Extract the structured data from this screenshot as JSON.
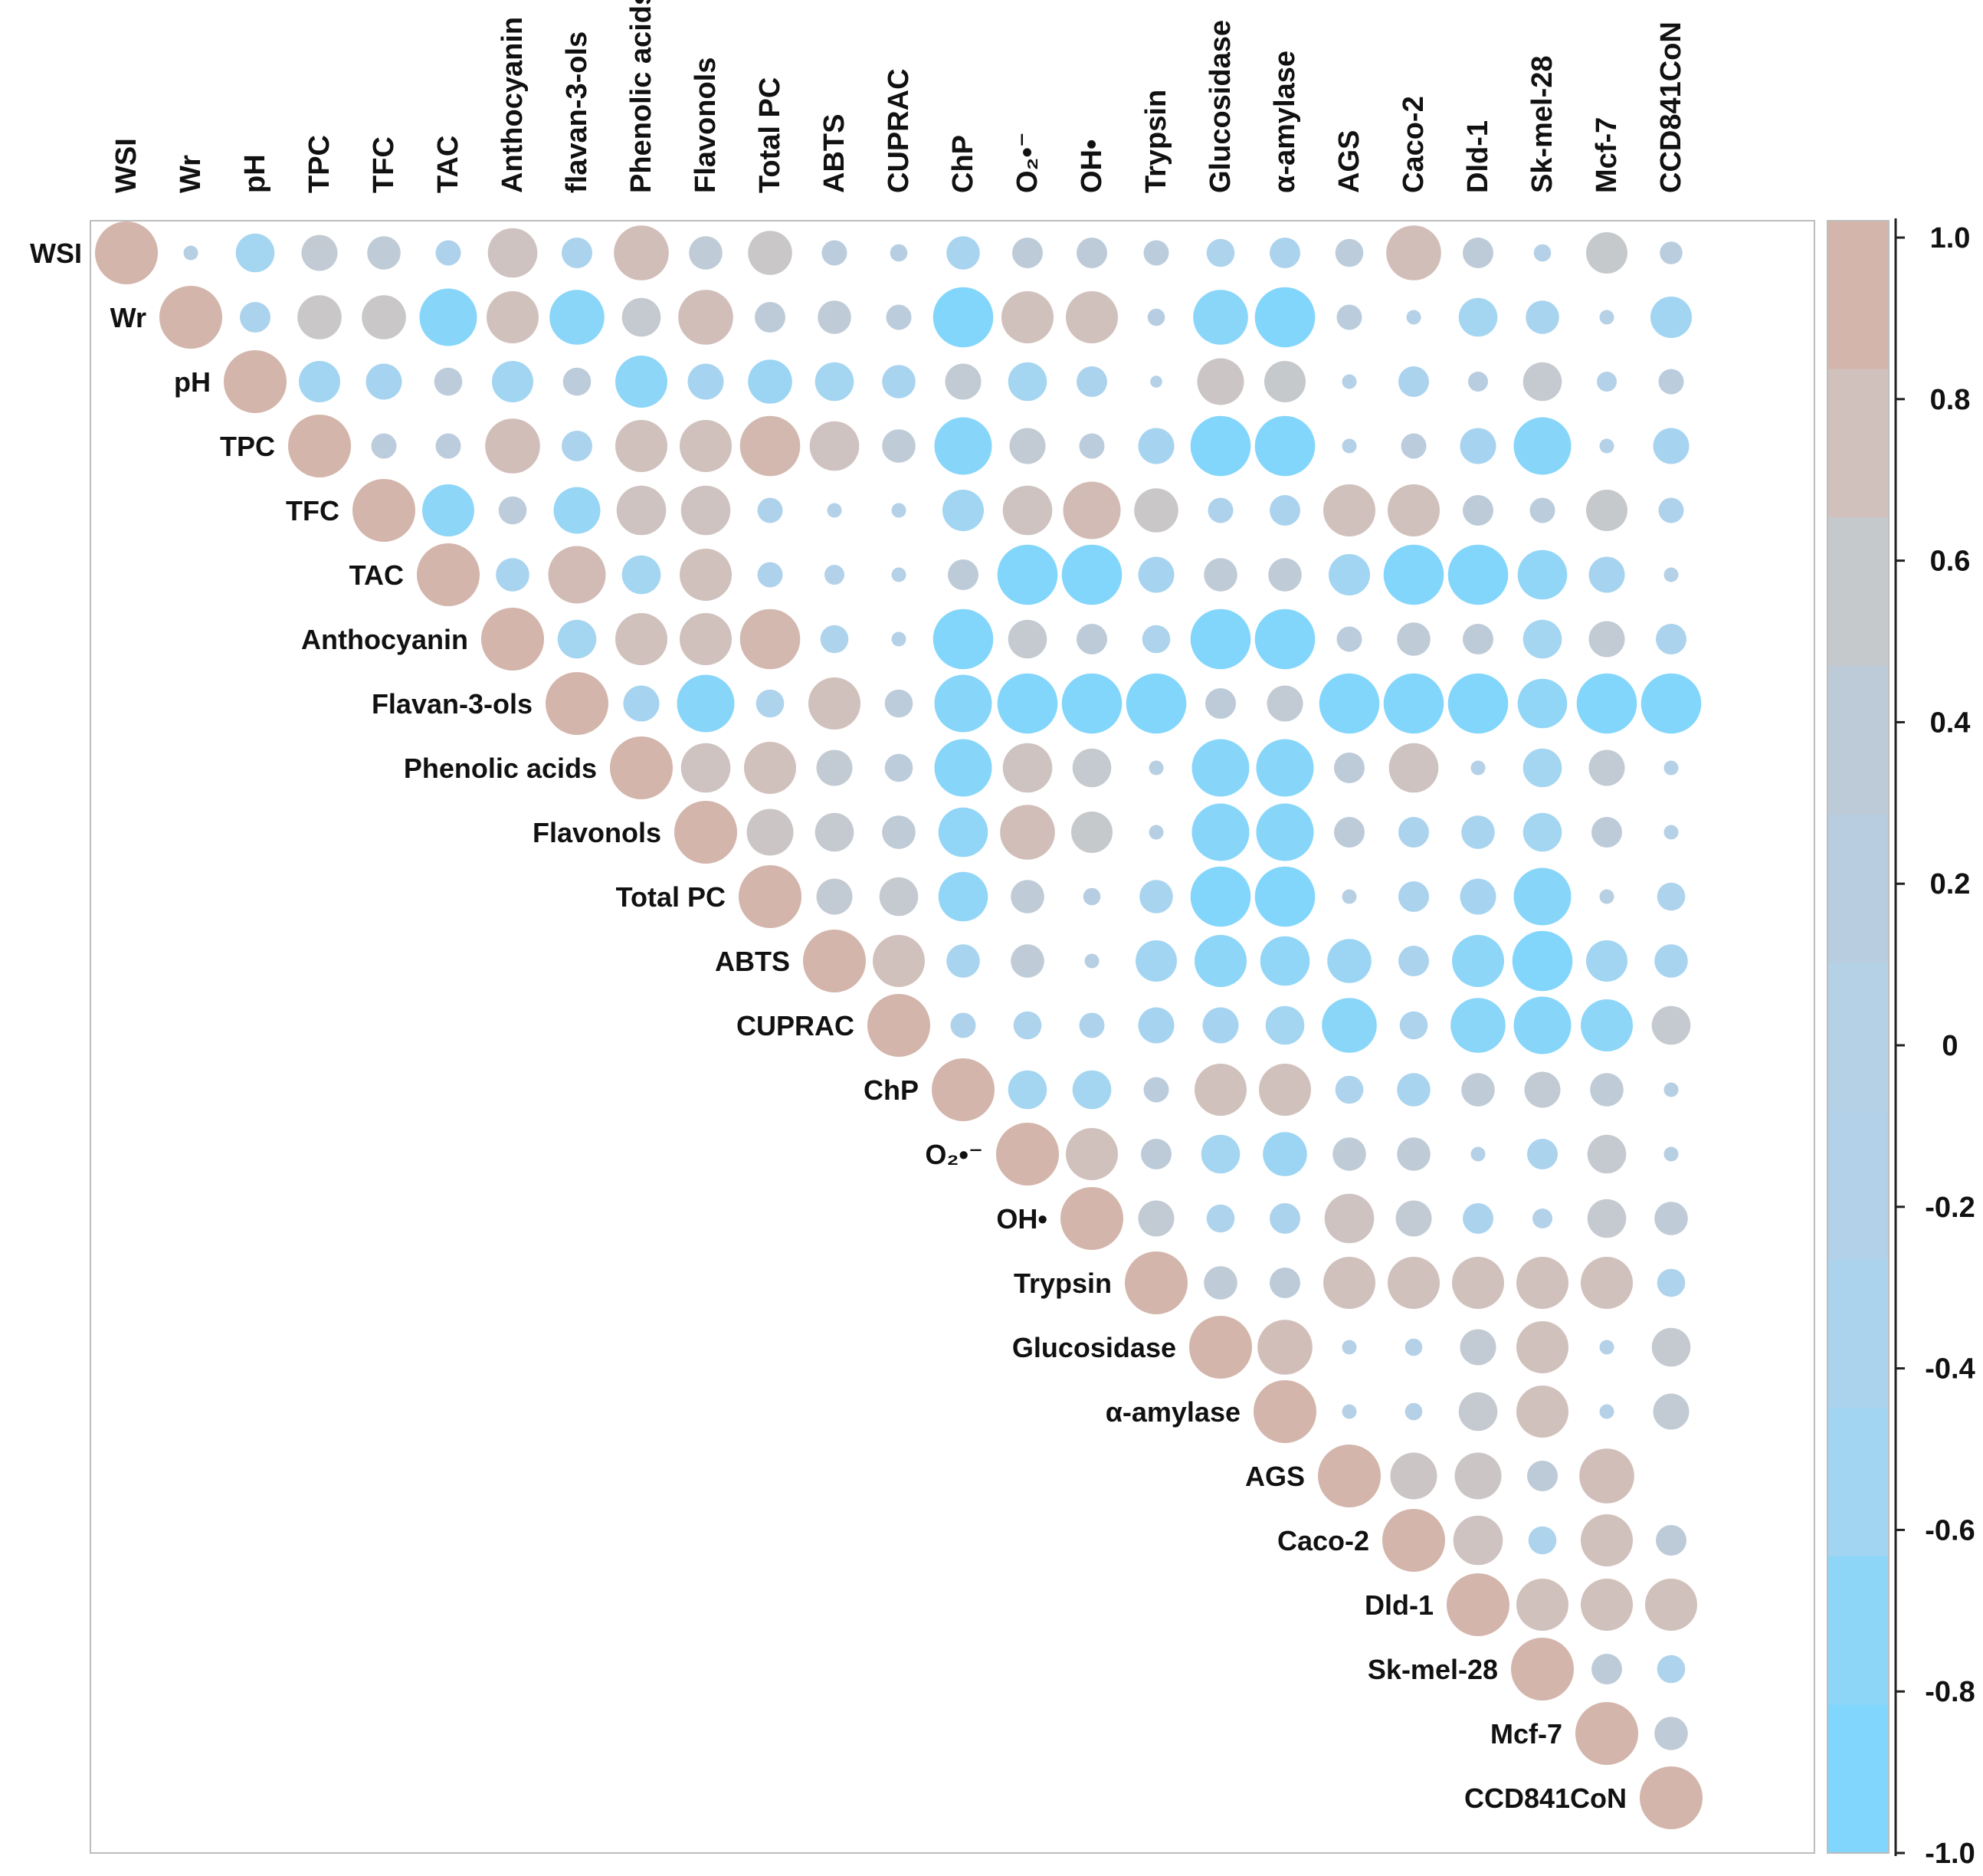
{
  "chart_data": {
    "type": "correlogram",
    "variables": [
      "WSI",
      "Wr",
      "pH",
      "TPC",
      "TFC",
      "TAC",
      "Anthocyanin",
      "Flavan-3-ols",
      "Phenolic acids",
      "Flavonols",
      "Total PC",
      "ABTS",
      "CUPRAC",
      "ChP",
      "O₂•⁻",
      "OH•",
      "Trypsin",
      "Glucosidase",
      "α-amylase",
      "AGS",
      "Caco-2",
      "Dld-1",
      "Sk-mel-28",
      "Mcf-7",
      "CCD841CoN"
    ],
    "column_labels": [
      "WSI",
      "Wr",
      "pH",
      "TPC",
      "TFC",
      "TAC",
      "Anthocyanin",
      "flavan-3-ols",
      "Phenolic acids",
      "Flavonols",
      "Total PC",
      "ABTS",
      "CUPRAC",
      "ChP",
      "O₂•⁻",
      "OH•",
      "Trypsin",
      "Glucosidase",
      "α-amylase",
      "AGS",
      "Caco-2",
      "Dld-1",
      "Sk-mel-28",
      "Mcf-7",
      "CCD841CoN"
    ],
    "row_labels": [
      "WSI",
      "Wr",
      "pH",
      "TPC",
      "TFC",
      "TAC",
      "Anthocyanin",
      "Flavan-3-ols",
      "Phenolic acids",
      "Flavonols",
      "Total PC",
      "ABTS",
      "CUPRAC",
      "ChP",
      "O₂•⁻",
      "OH•",
      "Trypsin",
      "Glucosidase",
      "α-amylase",
      "AGS",
      "Caco-2",
      "Dld-1",
      "Sk-mel-28",
      "Mcf-7",
      "CCD841CoN"
    ],
    "matrix_upper": [
      [
        1.0,
        0.1,
        -0.55,
        0.5,
        0.45,
        -0.3,
        0.75,
        -0.4,
        0.85,
        0.45,
        0.65,
        0.3,
        0.15,
        -0.45,
        0.4,
        0.4,
        0.3,
        -0.35,
        -0.4,
        0.35,
        0.85,
        0.4,
        -0.15,
        0.6,
        0.25
      ],
      [
        1.0,
        -0.4,
        0.65,
        0.65,
        -0.9,
        0.8,
        -0.85,
        0.55,
        0.85,
        0.4,
        0.45,
        0.3,
        -0.95,
        0.8,
        0.8,
        0.15,
        -0.85,
        -0.95,
        0.3,
        -0.1,
        -0.55,
        -0.45,
        -0.1,
        -0.6
      ],
      [
        1.0,
        -0.6,
        -0.5,
        0.35,
        -0.6,
        0.35,
        -0.8,
        -0.5,
        -0.65,
        -0.55,
        -0.45,
        0.5,
        -0.55,
        -0.4,
        -0.05,
        0.7,
        0.6,
        -0.1,
        -0.4,
        0.2,
        0.55,
        -0.2,
        0.3
      ],
      [
        1.0,
        0.3,
        0.3,
        0.85,
        -0.4,
        0.8,
        0.8,
        0.95,
        0.75,
        0.45,
        -0.9,
        0.5,
        0.3,
        -0.5,
        -0.95,
        -0.95,
        -0.1,
        0.3,
        -0.5,
        -0.9,
        -0.1,
        -0.5
      ],
      [
        1.0,
        -0.8,
        0.35,
        -0.7,
        0.75,
        0.75,
        -0.3,
        -0.1,
        -0.1,
        -0.6,
        0.75,
        0.9,
        0.65,
        -0.3,
        -0.4,
        0.8,
        0.8,
        0.4,
        0.3,
        0.6,
        -0.3
      ],
      [
        1.0,
        -0.45,
        0.9,
        -0.55,
        0.8,
        -0.3,
        -0.2,
        -0.1,
        0.4,
        -0.95,
        -0.95,
        -0.5,
        0.45,
        0.45,
        -0.6,
        -0.95,
        -0.95,
        -0.75,
        -0.5,
        -0.1
      ],
      [
        1.0,
        -0.55,
        0.8,
        0.8,
        0.95,
        -0.35,
        -0.1,
        -0.95,
        0.55,
        0.4,
        -0.35,
        -0.95,
        -0.95,
        0.3,
        0.45,
        0.4,
        -0.55,
        0.5,
        -0.4
      ],
      [
        1.0,
        -0.5,
        -0.9,
        -0.35,
        0.8,
        0.35,
        -0.9,
        -0.95,
        -0.95,
        -0.95,
        0.4,
        0.5,
        -0.95,
        -0.95,
        -0.95,
        -0.75,
        -0.95,
        -0.95
      ],
      [
        1.0,
        0.75,
        0.8,
        0.5,
        0.35,
        -0.9,
        0.75,
        0.55,
        0.1,
        -0.9,
        -0.9,
        0.4,
        0.75,
        -0.1,
        -0.55,
        0.5,
        -0.1
      ],
      [
        1.0,
        0.7,
        0.55,
        0.45,
        -0.75,
        0.85,
        0.6,
        0.1,
        -0.9,
        -0.9,
        0.4,
        -0.4,
        -0.45,
        -0.55,
        0.4,
        -0.1
      ],
      [
        1.0,
        0.5,
        0.55,
        -0.75,
        0.45,
        0.15,
        -0.45,
        -0.95,
        -0.95,
        0.1,
        -0.4,
        -0.5,
        -0.9,
        0.1,
        -0.35
      ],
      [
        1.0,
        0.8,
        -0.45,
        0.45,
        0.1,
        -0.6,
        -0.8,
        -0.75,
        -0.65,
        -0.4,
        -0.8,
        -0.95,
        -0.6,
        -0.45
      ],
      [
        1.0,
        -0.3,
        -0.35,
        -0.3,
        -0.5,
        -0.5,
        -0.55,
        -0.85,
        -0.35,
        -0.85,
        -0.9,
        -0.8,
        0.55
      ],
      [
        1.0,
        -0.55,
        -0.55,
        0.3,
        0.8,
        0.8,
        -0.35,
        -0.45,
        0.45,
        0.5,
        0.45,
        0.1
      ],
      [
        1.0,
        0.8,
        0.4,
        -0.55,
        -0.65,
        0.45,
        0.45,
        -0.1,
        -0.4,
        0.55,
        0.1
      ],
      [
        1.0,
        0.5,
        -0.35,
        -0.4,
        0.75,
        0.5,
        -0.4,
        -0.2,
        0.55,
        0.45
      ],
      [
        1.0,
        0.45,
        0.4,
        0.8,
        0.8,
        0.8,
        0.8,
        0.8,
        -0.35
      ],
      [
        1.0,
        0.85,
        -0.1,
        -0.15,
        0.5,
        0.8,
        -0.1,
        0.55
      ],
      [
        1.0,
        -0.1,
        -0.15,
        0.55,
        0.8,
        -0.1,
        0.5
      ],
      [
        1.0,
        0.7,
        0.7,
        0.4,
        0.85
      ],
      [
        1.0,
        0.75,
        -0.35,
        0.8,
        0.4
      ],
      [
        1.0,
        0.8,
        0.8,
        0.8
      ],
      [
        1.0,
        0.4,
        -0.35
      ],
      [
        1.0,
        0.45
      ],
      [
        1.0
      ]
    ],
    "color_scale": {
      "min": -1.0,
      "max": 1.0,
      "tick_labels": [
        "1.0",
        "0.8",
        "0.6",
        "0.4",
        "0.2",
        "0",
        "-0.2",
        "-0.4",
        "-0.6",
        "-0.8",
        "-1.0"
      ],
      "bands_top_to_bottom": [
        "#d3b5ab",
        "#d1c1bd",
        "#c6c9cc",
        "#bdcbd9",
        "#b8cde0",
        "#b5d1e6",
        "#b3d1e9",
        "#abd3ee",
        "#a1d5f2",
        "#8dd6f8",
        "#80d6fc"
      ]
    },
    "legend_position": "right"
  }
}
